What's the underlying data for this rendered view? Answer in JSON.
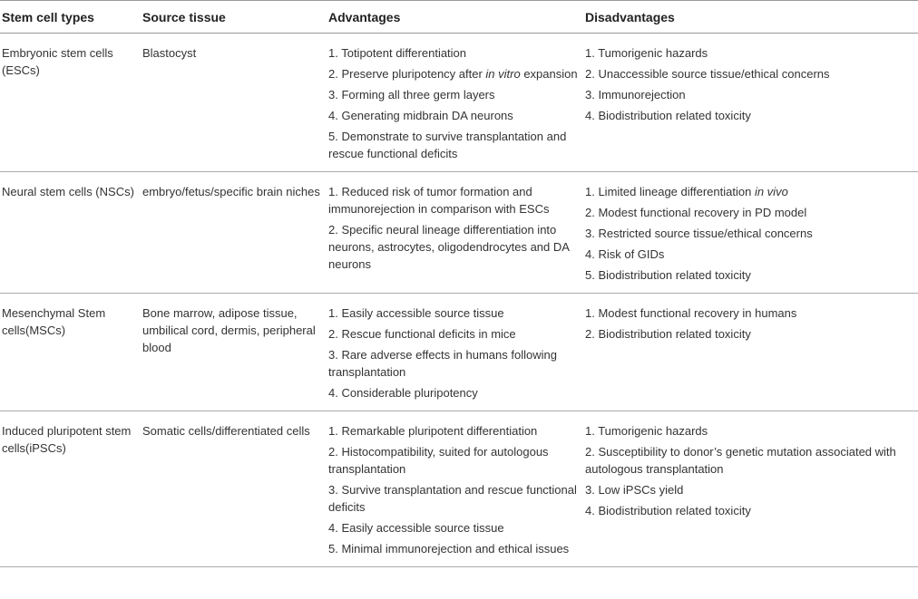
{
  "table": {
    "columns": [
      "Stem cell types",
      "Source tissue",
      "Advantages",
      "Disadvantages"
    ],
    "rows": [
      {
        "type": "Embryonic stem cells (ESCs)",
        "source": "Blastocyst",
        "advantages": [
          "1. Totipotent differentiation",
          [
            "2. Preserve pluripotency after ",
            {
              "italic": "in vitro"
            },
            " expansion"
          ],
          "3. Forming all three germ layers",
          "4. Generating midbrain DA neurons",
          "5. Demonstrate to survive transplantation and rescue functional deficits"
        ],
        "disadvantages": [
          "1. Tumorigenic hazards",
          "2. Unaccessible source tissue/ethical concerns",
          "3. Immunorejection",
          "4. Biodistribution related toxicity"
        ]
      },
      {
        "type": "Neural stem cells (NSCs)",
        "source": "embryo/fetus/specific brain niches",
        "advantages": [
          "1. Reduced risk of tumor formation and immunorejection in comparison with ESCs",
          "2. Specific neural lineage differentiation into neurons, astrocytes, oligodendrocytes and DA neurons"
        ],
        "disadvantages": [
          [
            "1. Limited lineage differentiation ",
            {
              "italic": "in vivo"
            }
          ],
          "2. Modest functional recovery in PD model",
          "3. Restricted source tissue/ethical concerns",
          "4. Risk of GIDs",
          "5. Biodistribution related toxicity"
        ]
      },
      {
        "type": "Mesenchymal Stem cells(MSCs)",
        "source": "Bone marrow, adipose tissue, umbilical cord, dermis, peripheral blood",
        "advantages": [
          "1. Easily accessible source tissue",
          "2. Rescue functional deficits in mice",
          "3. Rare adverse effects in humans following transplantation",
          "4. Considerable pluripotency"
        ],
        "disadvantages": [
          "1. Modest functional recovery in humans",
          "2. Biodistribution related toxicity"
        ]
      },
      {
        "type": "Induced pluripotent stem cells(iPSCs)",
        "source": "Somatic cells/differentiated cells",
        "advantages": [
          "1. Remarkable pluripotent differentiation",
          "2. Histocompatibility, suited for autologous transplantation",
          "3. Survive transplantation and rescue functional deficits",
          "4. Easily accessible source tissue",
          "5. Minimal immunorejection and ethical issues"
        ],
        "disadvantages": [
          "1. Tumorigenic hazards",
          "2. Susceptibility to donor’s genetic mutation associated with autologous transplantation",
          "3. Low iPSCs yield",
          "4. Biodistribution related toxicity"
        ]
      }
    ]
  }
}
